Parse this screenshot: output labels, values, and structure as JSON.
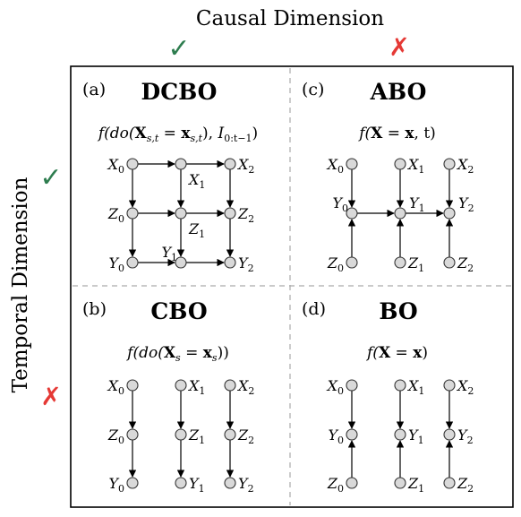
{
  "axes": {
    "top_label": "Causal Dimension",
    "left_label": "Temporal Dimension",
    "yes_mark": "✓",
    "no_mark": "✗",
    "yes_color": "#2e7d4f",
    "no_color": "#e53935"
  },
  "panels": [
    {
      "id": "a",
      "letter": "(a)",
      "title": "DCBO",
      "formula": {
        "pre": "f(do(",
        "X": "X",
        "Xsub": "s,t",
        "mid": " = ",
        "x": "x",
        "xsub": "s,t",
        "post": "), ",
        "I": "I",
        "Isub": "0:t−1",
        "end": ")"
      }
    },
    {
      "id": "b",
      "letter": "(b)",
      "title": "CBO",
      "formula": {
        "pre": "f(do(",
        "X": "X",
        "Xsub": "s",
        "mid": " = ",
        "x": "x",
        "xsub": "s",
        "post": "))"
      }
    },
    {
      "id": "c",
      "letter": "(c)",
      "title": "ABO",
      "formula": {
        "pre": "f(",
        "X": "X",
        "mid": " = ",
        "x": "x",
        "post": ", t)"
      }
    },
    {
      "id": "d",
      "letter": "(d)",
      "title": "BO",
      "formula": {
        "pre": "f(",
        "X": "X",
        "mid": " = ",
        "x": "x",
        "post": ")"
      }
    }
  ],
  "node_labels": {
    "X": "X",
    "Y": "Y",
    "Z": "Z",
    "i0": "0",
    "i1": "1",
    "i2": "2"
  }
}
